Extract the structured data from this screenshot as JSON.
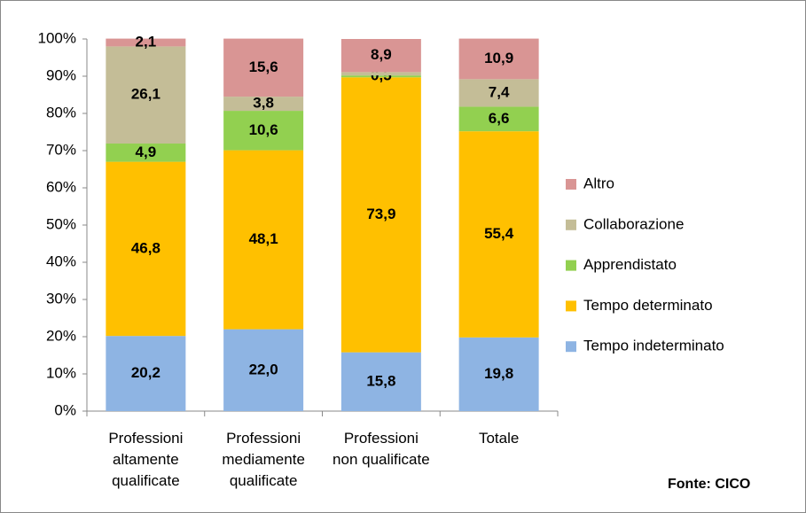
{
  "chart_data": {
    "type": "stacked_bar",
    "categories": [
      "Professioni altamente qualificate",
      "Professioni mediamente qualificate",
      "Professioni non qualificate",
      "Totale"
    ],
    "series": [
      {
        "name": "Tempo indeterminato",
        "color": "#8eb4e3",
        "values": [
          20.2,
          22.0,
          15.8,
          19.8
        ],
        "value_labels": [
          "20,2",
          "22,0",
          "15,8",
          "19,8"
        ]
      },
      {
        "name": "Tempo determinato",
        "color": "#ffc000",
        "values": [
          46.8,
          48.1,
          73.9,
          55.4
        ],
        "value_labels": [
          "46,8",
          "48,1",
          "73,9",
          "55,4"
        ]
      },
      {
        "name": "Apprendistato",
        "color": "#92d050",
        "values": [
          4.9,
          10.6,
          0.5,
          6.6
        ],
        "value_labels": [
          "4,9",
          "10,6",
          "0,5",
          "6,6"
        ]
      },
      {
        "name": "Collaborazione",
        "color": "#c4bd97",
        "values": [
          26.1,
          3.8,
          0.9,
          7.4
        ],
        "value_labels": [
          "26,1",
          "3,8",
          null,
          "7,4"
        ]
      },
      {
        "name": "Altro",
        "color": "#d99594",
        "values": [
          2.1,
          15.6,
          8.9,
          10.9
        ],
        "value_labels": [
          "2,1",
          "15,6",
          "8,9",
          "10,9"
        ]
      }
    ],
    "ylim": [
      0,
      100
    ],
    "yticks": [
      {
        "value": 0,
        "label": "0%"
      },
      {
        "value": 10,
        "label": "10%"
      },
      {
        "value": 20,
        "label": "20%"
      },
      {
        "value": 30,
        "label": "30%"
      },
      {
        "value": 40,
        "label": "40%"
      },
      {
        "value": 50,
        "label": "50%"
      },
      {
        "value": 60,
        "label": "60%"
      },
      {
        "value": 70,
        "label": "70%"
      },
      {
        "value": 80,
        "label": "80%"
      },
      {
        "value": 90,
        "label": "90%"
      },
      {
        "value": 100,
        "label": "100%"
      }
    ],
    "grid": false,
    "legend": "right",
    "annotation": "Fonte: CICO"
  }
}
